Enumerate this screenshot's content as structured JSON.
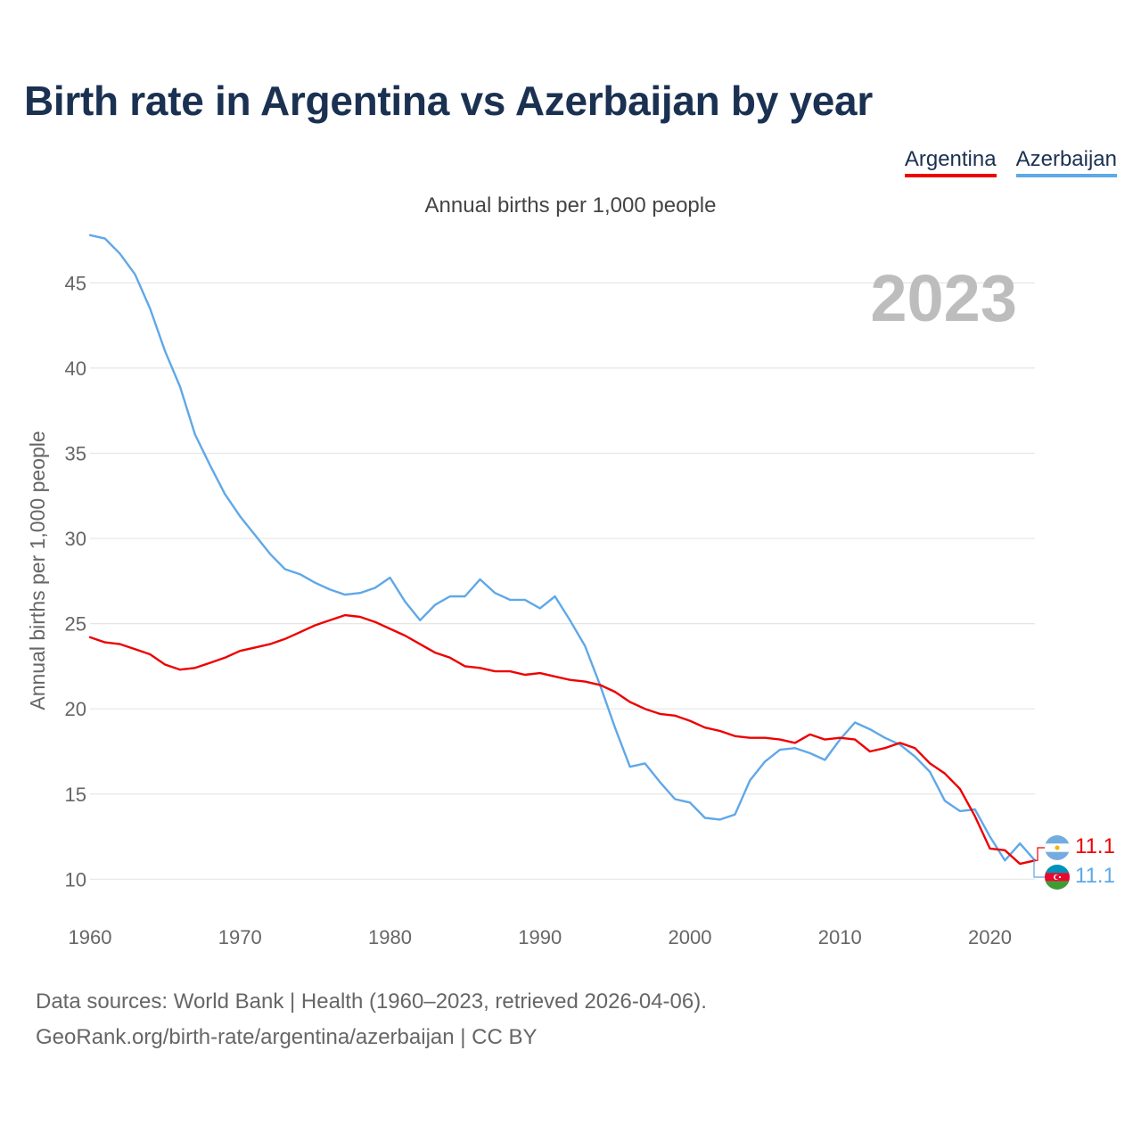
{
  "title": "Birth rate in Argentina vs Azerbaijan by year",
  "legend": {
    "items": [
      {
        "label": "Argentina",
        "color": "#ee0000"
      },
      {
        "label": "Azerbaijan",
        "color": "#5fa8e8"
      }
    ]
  },
  "subtitle": "Annual births per 1,000 people",
  "year_display": "2023",
  "sources": {
    "line1": "Data sources: World Bank | Health (1960–2023, retrieved 2026-04-06).",
    "line2": "GeoRank.org/birth-rate/argentina/azerbaijan | CC BY"
  },
  "end_labels": {
    "argentina": "11.1",
    "azerbaijan": "11.1"
  },
  "chart_data": {
    "type": "line",
    "title": "Birth rate in Argentina vs Azerbaijan by year",
    "xlabel": "",
    "ylabel": "Annual births per 1,000 people",
    "xlim": [
      1960,
      2023
    ],
    "ylim": [
      8.5,
      48
    ],
    "x_ticks": [
      1960,
      1970,
      1980,
      1990,
      2000,
      2010,
      2020
    ],
    "y_ticks": [
      10,
      15,
      20,
      25,
      30,
      35,
      40,
      45
    ],
    "grid": true,
    "legend_position": "top-right",
    "x": [
      1960,
      1961,
      1962,
      1963,
      1964,
      1965,
      1966,
      1967,
      1968,
      1969,
      1970,
      1971,
      1972,
      1973,
      1974,
      1975,
      1976,
      1977,
      1978,
      1979,
      1980,
      1981,
      1982,
      1983,
      1984,
      1985,
      1986,
      1987,
      1988,
      1989,
      1990,
      1991,
      1992,
      1993,
      1994,
      1995,
      1996,
      1997,
      1998,
      1999,
      2000,
      2001,
      2002,
      2003,
      2004,
      2005,
      2006,
      2007,
      2008,
      2009,
      2010,
      2011,
      2012,
      2013,
      2014,
      2015,
      2016,
      2017,
      2018,
      2019,
      2020,
      2021,
      2022,
      2023
    ],
    "series": [
      {
        "name": "Argentina",
        "color": "#ee0000",
        "values": [
          24.2,
          23.9,
          23.8,
          23.5,
          23.2,
          22.6,
          22.3,
          22.4,
          22.7,
          23.0,
          23.4,
          23.6,
          23.8,
          24.1,
          24.5,
          24.9,
          25.2,
          25.5,
          25.4,
          25.1,
          24.7,
          24.3,
          23.8,
          23.3,
          23.0,
          22.5,
          22.4,
          22.2,
          22.2,
          22.0,
          22.1,
          21.9,
          21.7,
          21.6,
          21.4,
          21.0,
          20.4,
          20.0,
          19.7,
          19.6,
          19.3,
          18.9,
          18.7,
          18.4,
          18.3,
          18.3,
          18.2,
          18.0,
          18.5,
          18.2,
          18.3,
          18.2,
          17.5,
          17.7,
          18.0,
          17.7,
          16.8,
          16.2,
          15.3,
          13.7,
          11.8,
          11.7,
          10.9,
          11.1
        ]
      },
      {
        "name": "Azerbaijan",
        "color": "#5fa8e8",
        "values": [
          47.8,
          47.6,
          46.7,
          45.5,
          43.5,
          41.0,
          38.9,
          36.1,
          34.3,
          32.6,
          31.3,
          30.2,
          29.1,
          28.2,
          27.9,
          27.4,
          27.0,
          26.7,
          26.8,
          27.1,
          27.7,
          26.3,
          25.2,
          26.1,
          26.6,
          26.6,
          27.6,
          26.8,
          26.4,
          26.4,
          25.9,
          26.6,
          25.2,
          23.7,
          21.4,
          18.9,
          16.6,
          16.8,
          15.7,
          14.7,
          14.5,
          13.6,
          13.5,
          13.8,
          15.8,
          16.9,
          17.6,
          17.7,
          17.4,
          17.0,
          18.2,
          19.2,
          18.8,
          18.3,
          17.9,
          17.2,
          16.3,
          14.6,
          14.0,
          14.1,
          12.5,
          11.1,
          12.1,
          11.1
        ]
      }
    ]
  }
}
